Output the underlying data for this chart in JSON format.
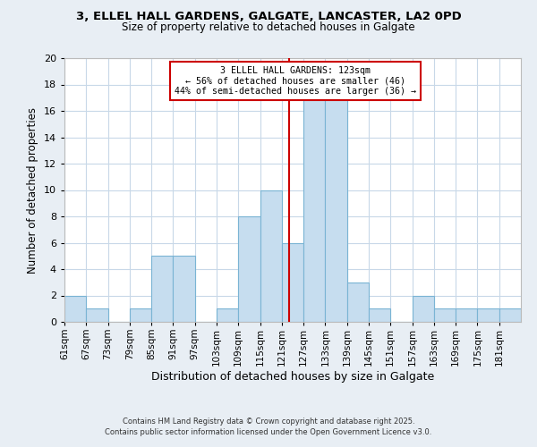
{
  "title_line1": "3, ELLEL HALL GARDENS, GALGATE, LANCASTER, LA2 0PD",
  "title_line2": "Size of property relative to detached houses in Galgate",
  "xlabel": "Distribution of detached houses by size in Galgate",
  "ylabel": "Number of detached properties",
  "bin_labels": [
    "61sqm",
    "67sqm",
    "73sqm",
    "79sqm",
    "85sqm",
    "91sqm",
    "97sqm",
    "103sqm",
    "109sqm",
    "115sqm",
    "121sqm",
    "127sqm",
    "133sqm",
    "139sqm",
    "145sqm",
    "151sqm",
    "157sqm",
    "163sqm",
    "169sqm",
    "175sqm",
    "181sqm"
  ],
  "bin_edges": [
    61,
    67,
    73,
    79,
    85,
    91,
    97,
    103,
    109,
    115,
    121,
    127,
    133,
    139,
    145,
    151,
    157,
    163,
    169,
    175,
    181,
    187
  ],
  "counts": [
    2,
    1,
    0,
    1,
    5,
    5,
    0,
    1,
    8,
    10,
    6,
    17,
    17,
    3,
    1,
    0,
    2,
    1,
    1,
    1,
    1
  ],
  "bar_color": "#c6ddef",
  "bar_edgecolor": "#7ab4d4",
  "grid_color": "#c8d8e8",
  "vline_x": 123,
  "vline_color": "#cc0000",
  "annotation_title": "3 ELLEL HALL GARDENS: 123sqm",
  "annotation_line2": "← 56% of detached houses are smaller (46)",
  "annotation_line3": "44% of semi-detached houses are larger (36) →",
  "annotation_box_edgecolor": "#cc0000",
  "annotation_box_facecolor": "#ffffff",
  "ylim": [
    0,
    20
  ],
  "yticks": [
    0,
    2,
    4,
    6,
    8,
    10,
    12,
    14,
    16,
    18,
    20
  ],
  "footer_line1": "Contains HM Land Registry data © Crown copyright and database right 2025.",
  "footer_line2": "Contains public sector information licensed under the Open Government Licence v3.0.",
  "bg_color": "#e8eef4",
  "plot_bg_color": "#ffffff"
}
